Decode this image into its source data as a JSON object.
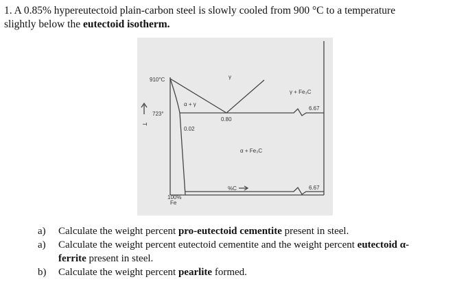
{
  "question": {
    "number": "1.",
    "text": "A 0.85% hypereutectoid plain-carbon steel is slowly cooled from 900 °C to a temperature",
    "text2": "slightly below the",
    "bold": "eutectoid isotherm."
  },
  "diagram": {
    "temp_910": "910°C",
    "temp_723": "723°",
    "axis_t": "T",
    "c_002": "0.02",
    "alpha_gamma": "α + γ",
    "gamma": "γ",
    "c_080": "0.80",
    "gamma_fe3c": "γ + Fe₃C",
    "c_667_top": "6.67",
    "alpha_fe3c": "α + Fe₃C",
    "c_667_bottom": "6.67",
    "fe_pct": "100%",
    "fe": "Fe",
    "pct_c": "%C"
  },
  "items": [
    {
      "label": "a)",
      "parts": [
        "Calculate the weight percent ",
        "pro-eutectoid cementite",
        " present in steel."
      ]
    },
    {
      "label": "a)",
      "parts": [
        "Calculate the weight percent eutectoid cementite and the weight percent ",
        "eutectoid α-",
        "ferrite",
        " present in steel."
      ]
    },
    {
      "label": "b)",
      "parts": [
        "Calculate the weight percent ",
        "pearlite",
        " formed."
      ]
    }
  ]
}
